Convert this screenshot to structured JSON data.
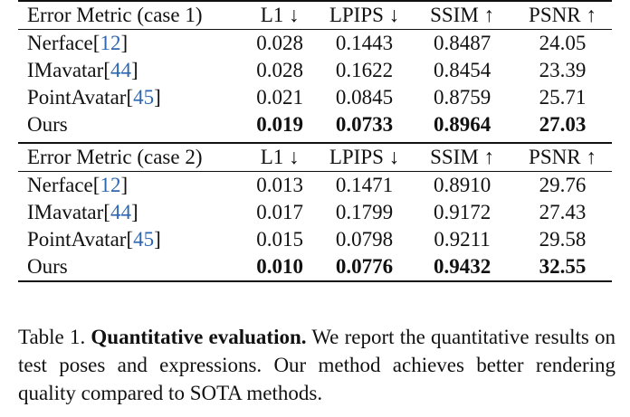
{
  "tables": [
    {
      "header": [
        "Error Metric (case 1)",
        "L1 ↓",
        "LPIPS ↓",
        "SSIM ↑",
        "PSNR ↑"
      ],
      "rows": [
        {
          "method": "Nerface",
          "cite": "12",
          "values": [
            "0.028",
            "0.1443",
            "0.8487",
            "24.05"
          ]
        },
        {
          "method": "IMavatar",
          "cite": "44",
          "values": [
            "0.028",
            "0.1622",
            "0.8454",
            "23.39"
          ]
        },
        {
          "method": "PointAvatar",
          "cite": "45",
          "values": [
            "0.021",
            "0.0845",
            "0.8759",
            "25.71"
          ]
        },
        {
          "method": "Ours",
          "cite": "",
          "values": [
            "0.019",
            "0.0733",
            "0.8964",
            "27.03"
          ]
        }
      ]
    },
    {
      "header": [
        "Error Metric (case 2)",
        "L1 ↓",
        "LPIPS ↓",
        "SSIM ↑",
        "PSNR ↑"
      ],
      "rows": [
        {
          "method": "Nerface",
          "cite": "12",
          "values": [
            "0.013",
            "0.1471",
            "0.8910",
            "29.76"
          ]
        },
        {
          "method": "IMavatar",
          "cite": "44",
          "values": [
            "0.017",
            "0.1799",
            "0.9172",
            "27.43"
          ]
        },
        {
          "method": "PointAvatar",
          "cite": "45",
          "values": [
            "0.015",
            "0.0798",
            "0.9211",
            "29.58"
          ]
        },
        {
          "method": "Ours",
          "cite": "",
          "values": [
            "0.010",
            "0.0776",
            "0.9432",
            "32.55"
          ]
        }
      ]
    }
  ],
  "caption": {
    "label": "Table 1.",
    "bold": "Quantitative evaluation.",
    "text": "We report the quantitative results on test poses and expressions. Our method achieves better rendering quality compared to SOTA methods."
  },
  "colors": {
    "citation": "#2e67b1",
    "text": "#111111"
  }
}
